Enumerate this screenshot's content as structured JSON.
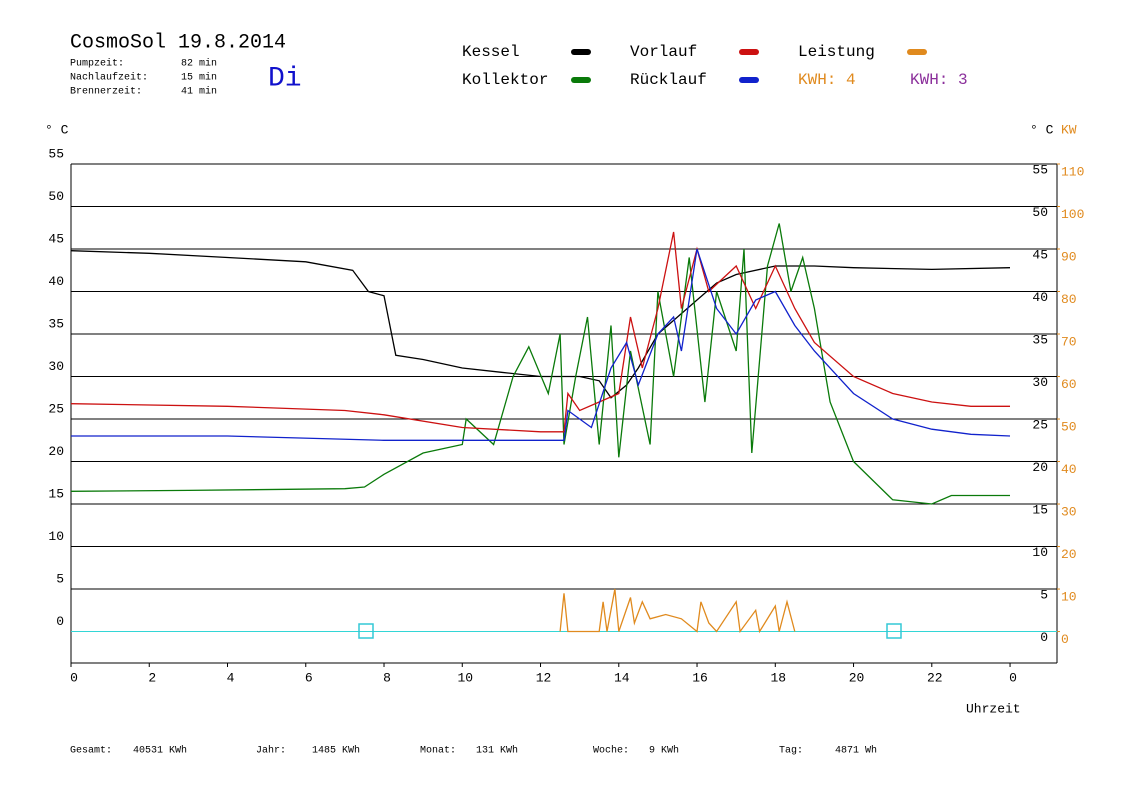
{
  "chart_data": {
    "type": "line",
    "title": "CosmoSol 19.8.2014",
    "weekday": "Di",
    "info": [
      {
        "label": "Pumpzeit:",
        "value": "82 min"
      },
      {
        "label": "Nachlaufzeit:",
        "value": "15 min"
      },
      {
        "label": "Brennerzeit:",
        "value": "41 min"
      }
    ],
    "kwh_labels": [
      {
        "text": "KWH: 4",
        "color": "#e08a1e"
      },
      {
        "text": "KWH: 3",
        "color": "#8b2f9b"
      }
    ],
    "y_label": "° C",
    "y2_label": "KW",
    "x_label": "Uhrzeit",
    "xlim": [
      0,
      25.2
    ],
    "xticks": [
      0,
      2,
      4,
      6,
      8,
      10,
      12,
      14,
      16,
      18,
      20,
      22,
      {
        "value": 24,
        "label": "0"
      }
    ],
    "ylim": [
      -3.7,
      55
    ],
    "yticks": [
      0,
      5,
      10,
      15,
      20,
      25,
      30,
      35,
      40,
      45,
      50,
      55
    ],
    "y2lim": [
      -7.4,
      110
    ],
    "y2ticks": [
      0,
      10,
      20,
      30,
      40,
      50,
      60,
      70,
      80,
      90,
      100,
      110
    ],
    "grid": true,
    "series": [
      {
        "name": "Kessel",
        "color": "#000000",
        "x": [
          0,
          2,
          4,
          6,
          7.2,
          7.6,
          8,
          8.3,
          9,
          10,
          11,
          12,
          13,
          13.5,
          13.8,
          14.2,
          14.5,
          15,
          15.5,
          16,
          16.5,
          17,
          18,
          19,
          20,
          22,
          24
        ],
        "values": [
          44.8,
          44.5,
          44,
          43.5,
          42.5,
          40,
          39.5,
          32.5,
          32,
          31,
          30.5,
          30,
          30,
          29.5,
          27.5,
          29,
          31,
          35,
          37,
          39,
          41,
          42,
          43,
          43,
          42.8,
          42.6,
          42.8
        ]
      },
      {
        "name": "Kollektor",
        "color": "#0a7a0a",
        "x": [
          0,
          3,
          7,
          7.5,
          8,
          9,
          10,
          10.1,
          10.8,
          11.3,
          11.7,
          12.2,
          12.5,
          12.6,
          12.9,
          13.2,
          13.5,
          13.8,
          14,
          14.3,
          14.8,
          15,
          15.4,
          15.8,
          16.2,
          16.5,
          17,
          17.2,
          17.4,
          17.8,
          18.1,
          18.4,
          18.7,
          19,
          19.4,
          20,
          21,
          22,
          22.5,
          24
        ],
        "values": [
          16.5,
          16.6,
          16.8,
          17,
          18.5,
          21,
          22,
          25,
          22,
          30,
          33.5,
          28,
          35,
          22,
          30,
          37,
          22,
          36,
          20.5,
          33,
          22,
          40,
          30,
          44,
          27,
          40,
          33,
          45,
          21,
          43,
          48,
          40,
          44,
          38,
          27,
          20,
          15.5,
          15,
          16,
          16
        ]
      },
      {
        "name": "Vorlauf",
        "color": "#cc1111",
        "x": [
          0,
          4,
          7,
          8,
          10,
          12,
          12.6,
          12.7,
          13,
          13.5,
          14,
          14.3,
          14.6,
          15,
          15.4,
          15.6,
          16,
          16.3,
          17,
          17.5,
          18,
          18.5,
          19,
          20,
          21,
          22,
          23,
          24
        ],
        "values": [
          26.8,
          26.5,
          26,
          25.5,
          24,
          23.5,
          23.5,
          28,
          26,
          27,
          28,
          37,
          31,
          38,
          47,
          38,
          45,
          40,
          43,
          38,
          43,
          38,
          34,
          30,
          28,
          27,
          26.5,
          26.5
        ]
      },
      {
        "name": "Rücklauf",
        "color": "#1122cc",
        "x": [
          0,
          4,
          8,
          10,
          12.6,
          12.7,
          13.3,
          13.8,
          14.2,
          14.5,
          15,
          15.4,
          15.6,
          16,
          16.5,
          17,
          17.5,
          18,
          18.5,
          19,
          20,
          21,
          22,
          23,
          24
        ],
        "values": [
          23,
          23,
          22.5,
          22.5,
          22.5,
          26,
          24,
          31,
          34,
          29,
          35,
          37,
          33,
          45,
          38,
          35,
          39,
          40,
          36,
          33,
          28,
          25,
          23.8,
          23.2,
          23
        ]
      },
      {
        "name": "Leistung",
        "color": "#e08a1e",
        "axis": "y2",
        "x": [
          12.5,
          12.6,
          12.7,
          13.5,
          13.6,
          13.7,
          13.9,
          14,
          14.3,
          14.4,
          14.6,
          14.8,
          15.2,
          15.6,
          16,
          16.1,
          16.3,
          16.5,
          17,
          17.1,
          17.5,
          17.6,
          18,
          18.1,
          18.3,
          18.5
        ],
        "values": [
          0,
          9,
          0,
          0,
          7,
          0,
          10,
          0,
          8,
          2,
          7,
          3,
          4,
          3,
          0,
          7,
          2,
          0,
          7,
          0,
          5,
          0,
          6,
          0,
          7,
          0
        ]
      }
    ],
    "footer": [
      {
        "label": "Gesamt:",
        "value": "40531 KWh"
      },
      {
        "label": "Jahr:",
        "value": "1485 KWh"
      },
      {
        "label": "Monat:",
        "value": "131 KWh"
      },
      {
        "label": "Woche:",
        "value": "9 KWh"
      },
      {
        "label": "Tag:",
        "value": "4871 Wh"
      }
    ]
  }
}
